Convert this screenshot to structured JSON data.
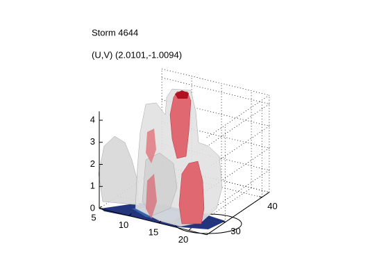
{
  "chart_data": {
    "type": "isosurface3d",
    "title": "Storm 4644",
    "subtitle": "(U,V) (2.0101,-1.0094)",
    "xlim": [
      5,
      23
    ],
    "ylim": [
      25,
      42
    ],
    "zlim": [
      0,
      4.4
    ],
    "xticks": [
      5,
      10,
      15,
      20
    ],
    "yticks": [
      30,
      40
    ],
    "zticks": [
      0,
      1,
      2,
      3,
      4
    ],
    "grid": true
  }
}
